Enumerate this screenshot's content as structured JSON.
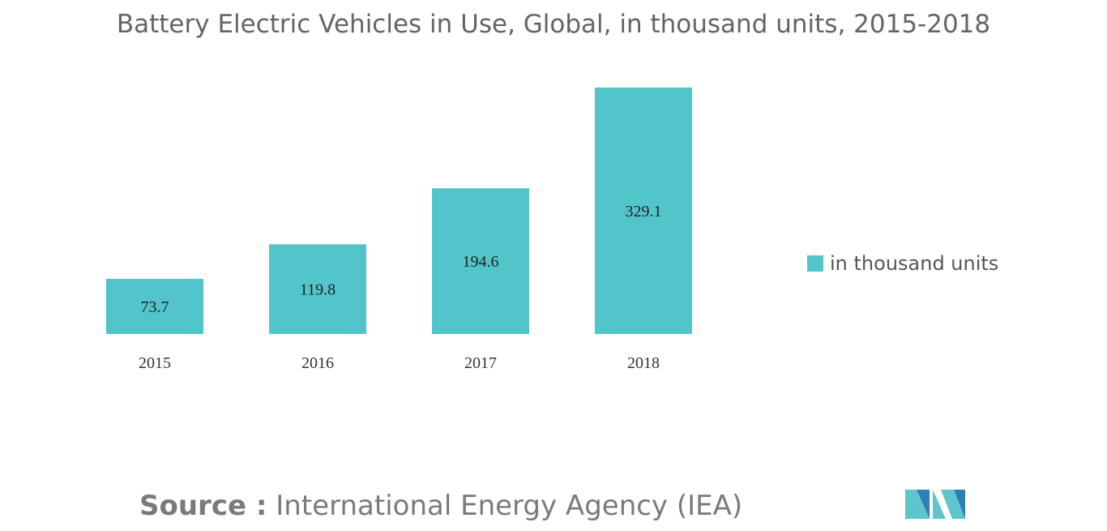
{
  "colors": {
    "bar": "#52C5CB",
    "title": "#646464",
    "logo_light": "#5DC5CD",
    "logo_dark": "#2F7FB7"
  },
  "chart_data": {
    "type": "bar",
    "title": "Battery Electric Vehicles in Use, Global, in thousand units, 2015-2018",
    "categories": [
      "2015",
      "2016",
      "2017",
      "2018"
    ],
    "series": [
      {
        "name": "in thousand units",
        "values": [
          73.7,
          119.8,
          194.6,
          329.1
        ]
      }
    ],
    "value_labels": [
      "73.7",
      "119.8",
      "194.6",
      "329.1"
    ],
    "xlabel": "",
    "ylabel": "",
    "ylim": [
      0,
      329.1
    ],
    "grid": false,
    "legend_position": "right"
  },
  "legend": {
    "label": "in thousand units"
  },
  "source": {
    "prefix": "Source :",
    "text": "International Energy Agency (IEA)"
  },
  "logo": {
    "icon": "mordor-intelligence-logo-icon"
  }
}
